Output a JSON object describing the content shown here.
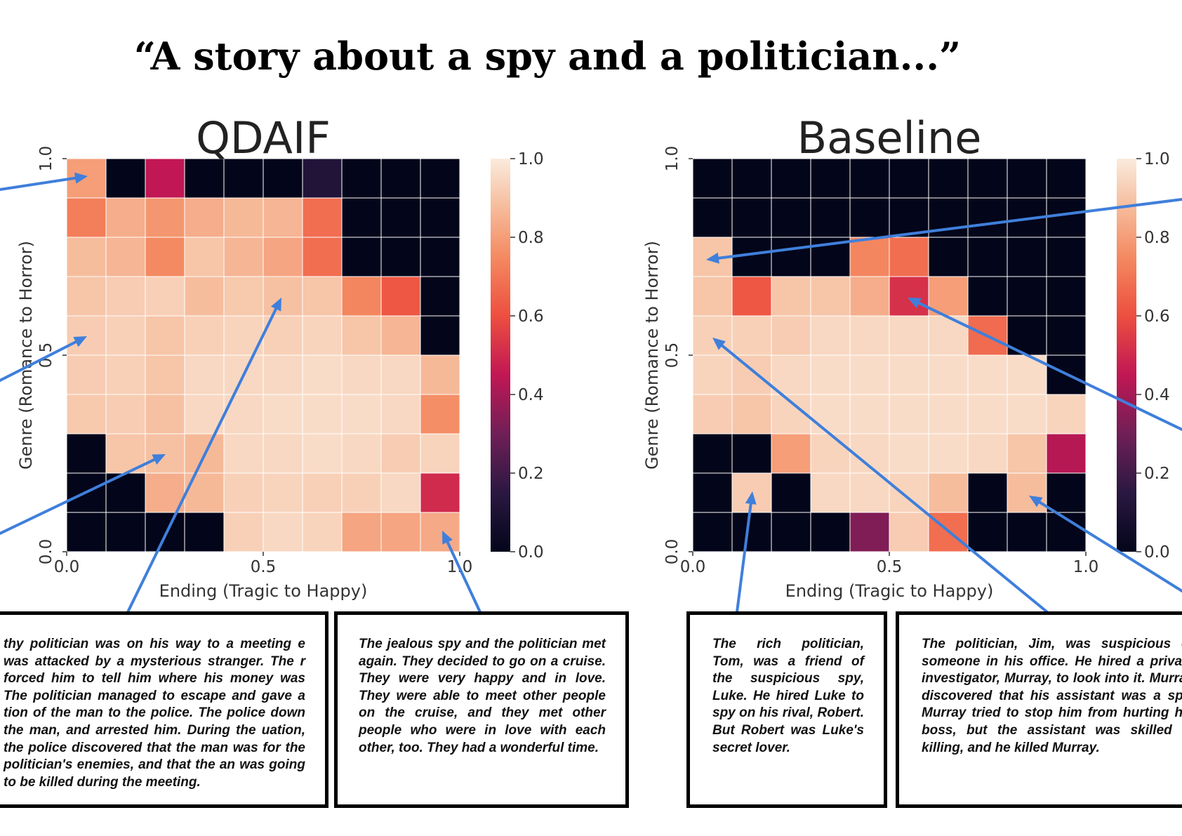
{
  "title": "“A story about a spy and a politician...”",
  "colorbar_ticks": [
    "1.0",
    "0.8",
    "0.6",
    "0.4",
    "0.2",
    "0.0"
  ],
  "chart_data": [
    {
      "type": "heatmap",
      "title": "QDAIF",
      "xlabel": "Ending (Tragic to Happy)",
      "ylabel": "Genre (Romance to Horror)",
      "xlim": [
        0.0,
        1.0
      ],
      "ylim": [
        0.0,
        1.0
      ],
      "x_ticks": [
        "0.0",
        "0.5",
        "1.0"
      ],
      "y_ticks": [
        "0.0",
        "0.5",
        "1.0"
      ],
      "color_range": [
        0.0,
        1.0
      ],
      "rows_top_to_bottom": [
        [
          0.8,
          0.0,
          0.45,
          0.0,
          0.0,
          0.0,
          0.12,
          0.0,
          0.0,
          0.0
        ],
        [
          0.72,
          0.84,
          0.78,
          0.84,
          0.87,
          0.86,
          0.68,
          0.0,
          0.0,
          0.0
        ],
        [
          0.88,
          0.86,
          0.75,
          0.9,
          0.86,
          0.82,
          0.68,
          0.0,
          0.0,
          0.0
        ],
        [
          0.9,
          0.92,
          0.93,
          0.88,
          0.91,
          0.89,
          0.9,
          0.74,
          0.62,
          0.0
        ],
        [
          0.92,
          0.93,
          0.9,
          0.93,
          0.94,
          0.93,
          0.94,
          0.9,
          0.86,
          0.0
        ],
        [
          0.92,
          0.93,
          0.9,
          0.95,
          0.95,
          0.95,
          0.96,
          0.95,
          0.95,
          0.87
        ],
        [
          0.91,
          0.92,
          0.89,
          0.95,
          0.95,
          0.96,
          0.96,
          0.96,
          0.95,
          0.76
        ],
        [
          0.0,
          0.9,
          0.89,
          0.87,
          0.95,
          0.95,
          0.96,
          0.95,
          0.92,
          0.94
        ],
        [
          0.0,
          0.0,
          0.84,
          0.87,
          0.93,
          0.94,
          0.93,
          0.93,
          0.95,
          0.5
        ],
        [
          0.0,
          0.0,
          0.0,
          0.0,
          0.93,
          0.95,
          0.94,
          0.82,
          0.82,
          0.83
        ]
      ]
    },
    {
      "type": "heatmap",
      "title": "Baseline",
      "xlabel": "Ending (Tragic to Happy)",
      "ylabel": "Genre (Romance to Horror)",
      "xlim": [
        0.0,
        1.0
      ],
      "ylim": [
        0.0,
        1.0
      ],
      "x_ticks": [
        "0.0",
        "0.5",
        "1.0"
      ],
      "y_ticks": [
        "0.0",
        "0.5",
        "1.0"
      ],
      "color_range": [
        0.0,
        1.0
      ],
      "rows_top_to_bottom": [
        [
          0.0,
          0.0,
          0.0,
          0.0,
          0.0,
          0.0,
          0.0,
          0.0,
          0.0,
          0.0
        ],
        [
          0.0,
          0.0,
          0.0,
          0.0,
          0.0,
          0.0,
          0.0,
          0.0,
          0.0,
          0.0
        ],
        [
          0.9,
          0.0,
          0.0,
          0.0,
          0.74,
          0.68,
          0.0,
          0.0,
          0.0,
          0.0
        ],
        [
          0.9,
          0.62,
          0.9,
          0.9,
          0.84,
          0.52,
          0.8,
          0.0,
          0.0,
          0.0
        ],
        [
          0.93,
          0.93,
          0.92,
          0.95,
          0.95,
          0.95,
          0.95,
          0.67,
          0.0,
          0.0
        ],
        [
          0.94,
          0.92,
          0.95,
          0.96,
          0.96,
          0.96,
          0.96,
          0.96,
          0.96,
          0.0
        ],
        [
          0.92,
          0.9,
          0.94,
          0.96,
          0.96,
          0.96,
          0.96,
          0.96,
          0.96,
          0.94
        ],
        [
          0.0,
          0.0,
          0.8,
          0.94,
          0.95,
          0.96,
          0.96,
          0.95,
          0.9,
          0.43
        ],
        [
          0.0,
          0.92,
          0.0,
          0.95,
          0.95,
          0.94,
          0.88,
          0.0,
          0.88,
          0.0
        ],
        [
          0.0,
          0.0,
          0.0,
          0.0,
          0.33,
          0.92,
          0.68,
          0.0,
          0.0,
          0.0
        ]
      ]
    }
  ],
  "stories": [
    "thy politician was on his way to a meeting e was attacked by a mysterious stranger. The r forced him to tell him where his money was The politician managed to escape and gave a tion of the man to the police. The police down the man, and arrested him. During the uation, the police discovered that the man was for the politician's enemies, and that the an was going to be killed during the meeting.",
    "The jealous spy and the politician met again. They decided to go on a cruise. They were very happy and in love. They were able to meet other people on the cruise, and they met other people who were in love with each other, too. They had a wonderful time.",
    "The rich politician, Tom, was a friend of the suspicious spy, Luke. He hired Luke to spy on his rival, Robert. But Robert was Luke's secret lover.",
    "The politician, Jim, was suspicious of someone in his office. He hired a private investigator, Murray, to look into it. Murray discovered that his assistant was a spy. Murray tried to stop him from hurting his boss, but the assistant was skilled at killing, and he killed Murray."
  ],
  "colors": {
    "arrow": "#3f7fdb",
    "axis": "#333333"
  }
}
